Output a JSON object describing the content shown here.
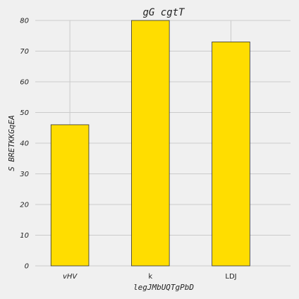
{
  "chart_data": {
    "type": "bar",
    "title": "gG cgtT",
    "xlabel": "legJMbUQTgPbD",
    "ylabel": "S BRETKKGqEA",
    "categories": [
      "vHV",
      "k",
      "LDJ"
    ],
    "category_italic": [
      true,
      false,
      false
    ],
    "values": [
      46,
      80,
      73
    ],
    "ylim": [
      0,
      80
    ],
    "yticks": [
      0,
      10,
      20,
      30,
      40,
      50,
      60,
      70,
      80
    ],
    "grid": true,
    "bar_color": "#ffdd00",
    "edge_color": "#333333",
    "background": "#f0f0f0",
    "grid_color": "#cbcbcb"
  }
}
